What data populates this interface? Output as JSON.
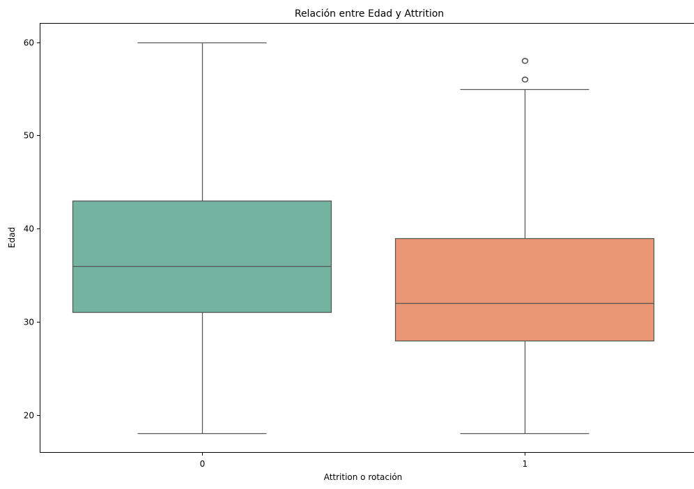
{
  "chart_data": {
    "type": "box",
    "title": "Relación entre Edad y Attrition",
    "xlabel": "Attrition o rotación",
    "ylabel": "Edad",
    "categories": [
      "0",
      "1"
    ],
    "ylim": [
      16,
      62
    ],
    "yticks": [
      20,
      30,
      40,
      50,
      60
    ],
    "grid": false,
    "boxes": [
      {
        "category": "0",
        "whisker_low": 18,
        "q1": 31,
        "median": 36,
        "q3": 43,
        "whisker_high": 60,
        "outliers": [],
        "color": "#73b3a0"
      },
      {
        "category": "1",
        "whisker_low": 18,
        "q1": 28,
        "median": 32,
        "q3": 39,
        "whisker_high": 55,
        "outliers": [
          56,
          58
        ],
        "color": "#e99674"
      }
    ],
    "line_color": "#555555"
  }
}
